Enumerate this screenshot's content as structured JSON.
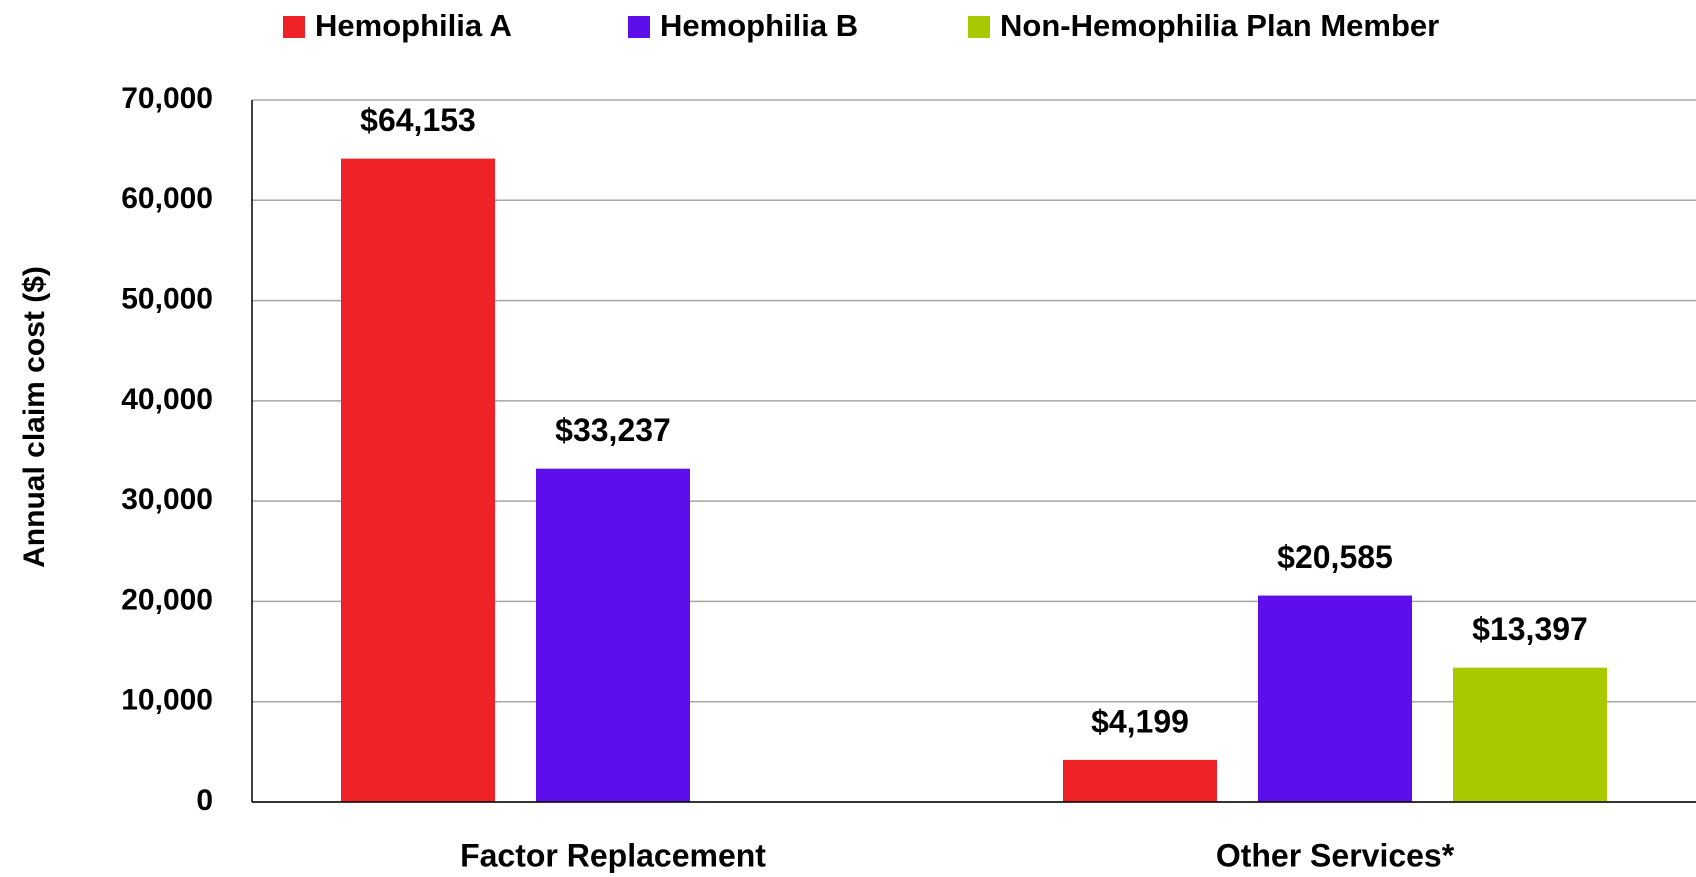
{
  "chart_data": {
    "type": "bar",
    "y_label": "Annual claim cost ($)",
    "categories": [
      "Factor Replacement",
      "Other Services*"
    ],
    "series": [
      {
        "name": "Hemophilia A",
        "color": "#ee2227",
        "values": [
          64153,
          4199
        ],
        "value_labels": [
          "$64,153",
          "$4,199"
        ]
      },
      {
        "name": "Hemophilia B",
        "color": "#5e0eea",
        "values": [
          33237,
          20585
        ],
        "value_labels": [
          "$33,237",
          "$20,585"
        ]
      },
      {
        "name": "Non-Hemophilia Plan Member",
        "color": "#a8c800",
        "values": [
          null,
          13397
        ],
        "value_labels": [
          null,
          "$13,397"
        ]
      }
    ],
    "ylim": [
      0,
      70000
    ],
    "yticks": [
      0,
      {
        "value": 10000,
        "label": "10,000"
      },
      {
        "value": 20000,
        "label": "20,000"
      },
      {
        "value": 30000,
        "label": "30,000"
      },
      {
        "value": 40000,
        "label": "40,000"
      },
      {
        "value": 50000,
        "label": "50,000"
      },
      {
        "value": 60000,
        "label": "60,000"
      },
      {
        "value": 70000,
        "label": "70,000"
      }
    ],
    "grid": true,
    "legend": "top"
  }
}
